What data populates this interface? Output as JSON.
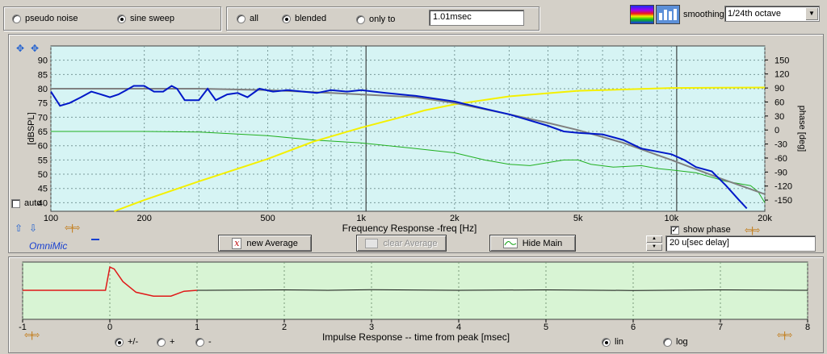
{
  "signal_group": {
    "pseudo_noise": "pseudo noise",
    "sine_sweep": "sine sweep",
    "selected": "sine sweep"
  },
  "window_group": {
    "all": "all",
    "blended": "blended",
    "only_to": "only to",
    "selected": "blended",
    "window_value": "1.01msec"
  },
  "smoothing": {
    "label": "smoothing",
    "value": "1/24th octave"
  },
  "freq_plot": {
    "xlabel": "Frequency Response -freq [Hz]",
    "ylabel_left": "[dBSPL]",
    "ylabel_right": "phase [deg]",
    "x_ticks": [
      "100",
      "200",
      "500",
      "1k",
      "2k",
      "5k",
      "10k",
      "20k"
    ],
    "y_ticks_left": [
      "90",
      "85",
      "80",
      "75",
      "70",
      "65",
      "60",
      "55",
      "50",
      "45",
      "40"
    ],
    "y_ticks_right": [
      "150",
      "120",
      "90",
      "60",
      "30",
      "0",
      "-30",
      "-60",
      "-90",
      "-120",
      "-150"
    ],
    "auto_label": "auto",
    "show_phase_label": "show phase",
    "colors": {
      "bg": "#d6f4f4",
      "magnitude": "#0018c8",
      "average": "#808080",
      "phase": "#f4f000",
      "green": "#20b020"
    }
  },
  "omnimic": {
    "label": "OmniMic"
  },
  "buttons": {
    "new_average": "new Average",
    "clear_average": "clear Average",
    "hide_main": "Hide Main"
  },
  "delay": {
    "value": "20 u[sec delay]"
  },
  "impulse_plot": {
    "xlabel": "Impulse Response  -- time from peak [msec]",
    "x_ticks": [
      "-1",
      "0",
      "1",
      "2",
      "3",
      "4",
      "5",
      "6",
      "7",
      "8"
    ],
    "colors": {
      "bg": "#d8f4d4",
      "early": "#e01818",
      "late": "#101010"
    },
    "polarity": {
      "pm": "+/-",
      "plus": "+",
      "minus": "-",
      "selected": "+/-"
    },
    "scale": {
      "lin": "lin",
      "log": "log",
      "selected": "lin"
    }
  }
}
